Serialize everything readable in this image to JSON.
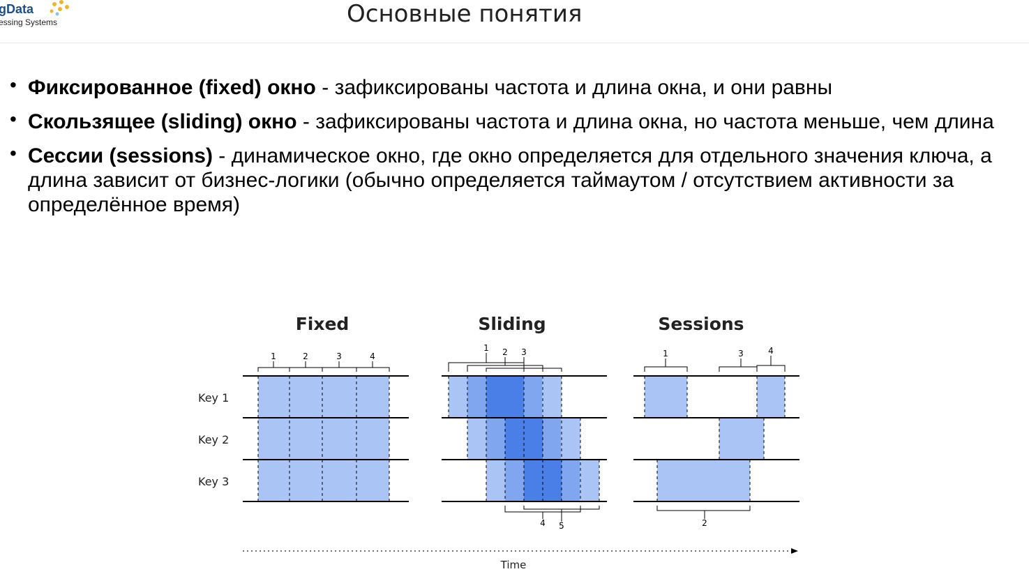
{
  "logo": {
    "brand": "gData",
    "subtitle": "essing Systems"
  },
  "header": {
    "title": "Основные понятия"
  },
  "bullets": [
    {
      "term": "Фиксированное (fixed) окно",
      "sep": " - ",
      "text": " зафиксированы частота и длина окна, и они равны"
    },
    {
      "term": "Скользящее (sliding) окно",
      "sep": " - ",
      "text": " зафиксированы частота и длина окна, но частота меньше, чем длина"
    },
    {
      "term": "Сессии (sessions)",
      "sep": " - ",
      "text": "  динамическое окно, где окно определяется для отдельного значения ключа, а длина зависит от бизнес-логики (обычно определяется таймаутом / отсутствием активности за определённое время)"
    }
  ],
  "diagram": {
    "panels": [
      {
        "title": "Fixed",
        "window_labels": [
          "1",
          "2",
          "3",
          "4"
        ]
      },
      {
        "title": "Sliding",
        "window_labels_top": [
          "1",
          "2",
          "3"
        ],
        "window_labels_bottom": [
          "4",
          "5"
        ]
      },
      {
        "title": "Sessions",
        "window_labels_top": [
          "1",
          "3",
          "4"
        ],
        "window_labels_bottom": [
          "2"
        ]
      }
    ],
    "keys": [
      "Key 1",
      "Key 2",
      "Key 3"
    ],
    "time_label": "Time",
    "colors": {
      "light": "#a9c4f5",
      "mid": "#7fa6ee",
      "dark": "#4a7fe8",
      "line": "#000000"
    }
  }
}
